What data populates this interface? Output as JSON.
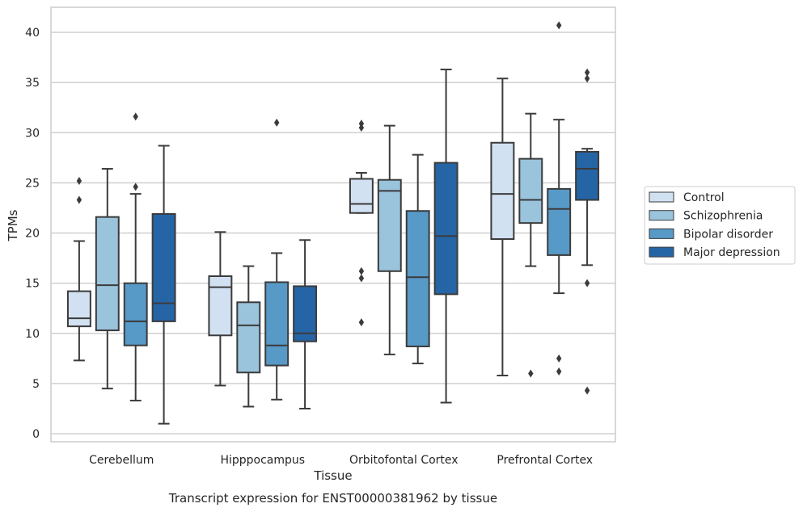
{
  "chart_data": {
    "type": "box",
    "title": "Transcript expression for ENST00000381962 by tissue",
    "xlabel": "Tissue",
    "ylabel": "TPMs",
    "ylim": [
      -0.8,
      42.5
    ],
    "yticks": [
      0,
      5,
      10,
      15,
      20,
      25,
      30,
      35,
      40
    ],
    "grid": "horizontal",
    "legend_position": "right",
    "categories": [
      "Cerebellum",
      "Hipppocampus",
      "Orbitofontal Cortex",
      "Prefrontal Cortex"
    ],
    "series": [
      {
        "name": "Control",
        "color": "#d1e1f2",
        "boxes": [
          {
            "whislo": 7.3,
            "q1": 10.7,
            "med": 11.5,
            "q3": 14.2,
            "whishi": 19.2,
            "fliers": [
              23.3,
              25.2
            ]
          },
          {
            "whislo": 4.8,
            "q1": 9.8,
            "med": 14.6,
            "q3": 15.7,
            "whishi": 20.1,
            "fliers": []
          },
          {
            "whislo": 22.0,
            "q1": 22.0,
            "med": 22.9,
            "q3": 25.4,
            "whishi": 26.0,
            "fliers": [
              11.1,
              15.5,
              16.2,
              30.5,
              30.9
            ]
          },
          {
            "whislo": 5.8,
            "q1": 19.4,
            "med": 23.9,
            "q3": 29.0,
            "whishi": 35.4,
            "fliers": []
          }
        ]
      },
      {
        "name": "Schizophrenia",
        "color": "#9ac3dc",
        "boxes": [
          {
            "whislo": 4.5,
            "q1": 10.3,
            "med": 14.8,
            "q3": 21.6,
            "whishi": 26.4,
            "fliers": []
          },
          {
            "whislo": 2.7,
            "q1": 6.1,
            "med": 10.8,
            "q3": 13.1,
            "whishi": 16.7,
            "fliers": []
          },
          {
            "whislo": 7.9,
            "q1": 16.2,
            "med": 24.2,
            "q3": 25.3,
            "whishi": 30.7,
            "fliers": []
          },
          {
            "whislo": 16.7,
            "q1": 21.0,
            "med": 23.3,
            "q3": 27.4,
            "whishi": 31.9,
            "fliers": [
              6.0
            ]
          }
        ]
      },
      {
        "name": "Bipolar disorder",
        "color": "#5799c7",
        "boxes": [
          {
            "whislo": 3.3,
            "q1": 8.8,
            "med": 11.2,
            "q3": 15.0,
            "whishi": 23.9,
            "fliers": [
              24.6,
              31.6
            ]
          },
          {
            "whislo": 3.4,
            "q1": 6.8,
            "med": 8.8,
            "q3": 15.1,
            "whishi": 18.0,
            "fliers": [
              31.0
            ]
          },
          {
            "whislo": 7.0,
            "q1": 8.7,
            "med": 15.6,
            "q3": 22.2,
            "whishi": 27.8,
            "fliers": []
          },
          {
            "whislo": 14.0,
            "q1": 17.8,
            "med": 22.4,
            "q3": 24.4,
            "whishi": 31.3,
            "fliers": [
              6.2,
              7.5,
              40.7
            ]
          }
        ]
      },
      {
        "name": "Major depression",
        "color": "#2565a6",
        "boxes": [
          {
            "whislo": 1.0,
            "q1": 11.2,
            "med": 13.0,
            "q3": 21.9,
            "whishi": 28.7,
            "fliers": []
          },
          {
            "whislo": 2.5,
            "q1": 9.2,
            "med": 10.0,
            "q3": 14.7,
            "whishi": 19.3,
            "fliers": []
          },
          {
            "whislo": 3.1,
            "q1": 13.9,
            "med": 19.7,
            "q3": 27.0,
            "whishi": 36.3,
            "fliers": []
          },
          {
            "whislo": 16.8,
            "q1": 23.3,
            "med": 26.4,
            "q3": 28.1,
            "whishi": 28.4,
            "fliers": [
              4.3,
              15.0,
              35.4,
              36.0
            ]
          }
        ]
      }
    ]
  }
}
